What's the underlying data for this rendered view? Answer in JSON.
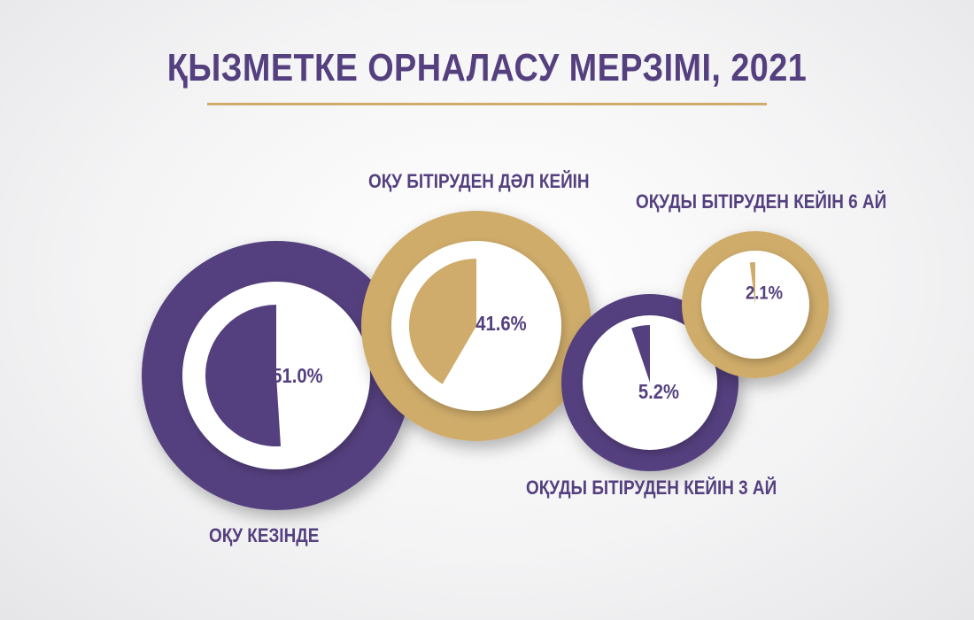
{
  "colors": {
    "purple": "#55407f",
    "gold": "#cfac6b",
    "text": "#55407f",
    "white": "#ffffff"
  },
  "chart_data": {
    "type": "pie",
    "title": "ҚЫЗМЕТКЕ ОРНАЛАСУ МЕРЗІМІ, 2021",
    "series": [
      {
        "name": "ОҚУ КЕЗІНДЕ",
        "value": 51.0,
        "value_label": "51.0%",
        "color": "#55407f"
      },
      {
        "name": "ОҚУ БІТІРУДЕН ДӘЛ КЕЙІН",
        "value": 41.6,
        "value_label": "41.6%",
        "color": "#cfac6b"
      },
      {
        "name": "ОҚУДЫ БІТІРУДЕН КЕЙІН 3 АЙ",
        "value": 5.2,
        "value_label": "5.2%",
        "color": "#55407f"
      },
      {
        "name": "ОҚУДЫ БІТІРУДЕН КЕЙІН 6 АЙ",
        "value": 2.1,
        "value_label": "2.1%",
        "color": "#cfac6b"
      }
    ]
  }
}
